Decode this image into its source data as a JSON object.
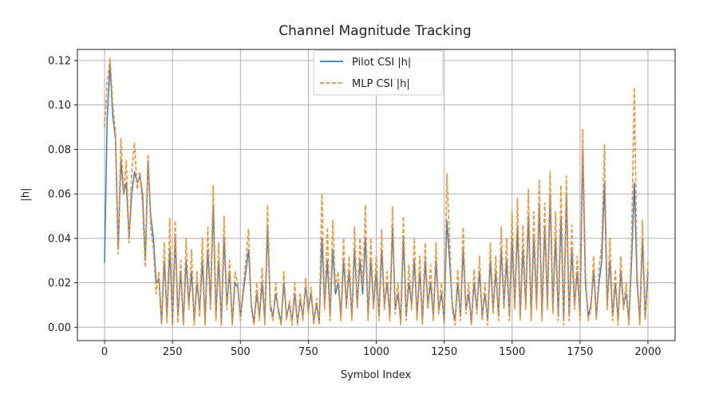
{
  "chart_data": {
    "type": "line",
    "title": "Channel Magnitude Tracking",
    "xlabel": "Symbol Index",
    "ylabel": "|h|",
    "xlim": [
      -100,
      2100
    ],
    "ylim": [
      -0.006,
      0.125
    ],
    "xticks": [
      0,
      250,
      500,
      750,
      1000,
      1250,
      1500,
      1750,
      2000
    ],
    "xtick_labels": [
      "0",
      "250",
      "500",
      "750",
      "1000",
      "1250",
      "1500",
      "1750",
      "2000"
    ],
    "yticks": [
      0,
      0.02,
      0.04,
      0.06,
      0.08,
      0.1,
      0.12
    ],
    "ytick_labels": [
      "0.00",
      "0.02",
      "0.04",
      "0.06",
      "0.08",
      "0.10",
      "0.12"
    ],
    "grid": true,
    "legend_placement": "top-center",
    "x": [
      0,
      10,
      20,
      30,
      40,
      50,
      60,
      70,
      80,
      90,
      100,
      110,
      120,
      130,
      140,
      150,
      160,
      170,
      180,
      190,
      200,
      210,
      220,
      230,
      240,
      250,
      260,
      270,
      280,
      290,
      300,
      310,
      320,
      330,
      340,
      350,
      360,
      370,
      380,
      390,
      400,
      410,
      420,
      430,
      440,
      450,
      460,
      470,
      480,
      490,
      500,
      510,
      520,
      530,
      540,
      550,
      560,
      570,
      580,
      590,
      600,
      610,
      620,
      630,
      640,
      650,
      660,
      670,
      680,
      690,
      700,
      710,
      720,
      730,
      740,
      750,
      760,
      770,
      780,
      790,
      800,
      810,
      820,
      830,
      840,
      850,
      860,
      870,
      880,
      890,
      900,
      910,
      920,
      930,
      940,
      950,
      960,
      970,
      980,
      990,
      1000,
      1010,
      1020,
      1030,
      1040,
      1050,
      1060,
      1070,
      1080,
      1090,
      1100,
      1110,
      1120,
      1130,
      1140,
      1150,
      1160,
      1170,
      1180,
      1190,
      1200,
      1210,
      1220,
      1230,
      1240,
      1250,
      1260,
      1270,
      1280,
      1290,
      1300,
      1310,
      1320,
      1330,
      1340,
      1350,
      1360,
      1370,
      1380,
      1390,
      1400,
      1410,
      1420,
      1430,
      1440,
      1450,
      1460,
      1470,
      1480,
      1490,
      1500,
      1510,
      1520,
      1530,
      1540,
      1550,
      1560,
      1570,
      1580,
      1590,
      1600,
      1610,
      1620,
      1630,
      1640,
      1650,
      1660,
      1670,
      1680,
      1690,
      1700,
      1710,
      1720,
      1730,
      1740,
      1750,
      1760,
      1770,
      1780,
      1790,
      1800,
      1810,
      1820,
      1830,
      1840,
      1850,
      1860,
      1870,
      1880,
      1890,
      1900,
      1910,
      1920,
      1930,
      1940,
      1950,
      1960,
      1970,
      1980,
      1990,
      2000
    ],
    "series": [
      {
        "name": "Pilot CSI |h|",
        "color": "#3a7bbf",
        "style": "solid",
        "values": [
          0.029,
          0.095,
          0.118,
          0.095,
          0.085,
          0.035,
          0.075,
          0.06,
          0.065,
          0.04,
          0.06,
          0.07,
          0.065,
          0.068,
          0.06,
          0.03,
          0.075,
          0.05,
          0.04,
          0.02,
          0.022,
          0.002,
          0.03,
          0.005,
          0.035,
          0.002,
          0.04,
          0.005,
          0.025,
          0.002,
          0.03,
          0.01,
          0.025,
          0.003,
          0.02,
          0.008,
          0.03,
          0.002,
          0.035,
          0.01,
          0.055,
          0.005,
          0.03,
          0.002,
          0.04,
          0.01,
          0.025,
          0.002,
          0.02,
          0.018,
          0.005,
          0.015,
          0.025,
          0.035,
          0.01,
          0.002,
          0.015,
          0.005,
          0.02,
          0.003,
          0.045,
          0.01,
          0.005,
          0.015,
          0.008,
          0.002,
          0.02,
          0.005,
          0.01,
          0.003,
          0.015,
          0.002,
          0.012,
          0.005,
          0.018,
          0.008,
          0.015,
          0.003,
          0.01,
          0.002,
          0.04,
          0.01,
          0.03,
          0.005,
          0.035,
          0.015,
          0.02,
          0.005,
          0.03,
          0.01,
          0.025,
          0.005,
          0.035,
          0.01,
          0.03,
          0.015,
          0.04,
          0.005,
          0.03,
          0.01,
          0.025,
          0.005,
          0.035,
          0.01,
          0.02,
          0.005,
          0.045,
          0.008,
          0.015,
          0.003,
          0.04,
          0.005,
          0.02,
          0.01,
          0.03,
          0.005,
          0.025,
          0.003,
          0.03,
          0.01,
          0.02,
          0.005,
          0.03,
          0.008,
          0.015,
          0.003,
          0.048,
          0.03,
          0.01,
          0.003,
          0.02,
          0.005,
          0.035,
          0.008,
          0.015,
          0.002,
          0.02,
          0.008,
          0.025,
          0.005,
          0.015,
          0.003,
          0.03,
          0.008,
          0.025,
          0.005,
          0.035,
          0.01,
          0.03,
          0.005,
          0.04,
          0.01,
          0.045,
          0.005,
          0.035,
          0.01,
          0.05,
          0.005,
          0.04,
          0.01,
          0.055,
          0.005,
          0.045,
          0.01,
          0.06,
          0.008,
          0.04,
          0.005,
          0.05,
          0.003,
          0.06,
          0.005,
          0.035,
          0.01,
          0.025,
          0.005,
          0.08,
          0.02,
          0.005,
          0.01,
          0.025,
          0.005,
          0.02,
          0.03,
          0.065,
          0.01,
          0.03,
          0.005,
          0.02,
          0.003,
          0.025,
          0.01,
          0.015,
          0.003,
          0.03,
          0.065,
          0.02,
          0.003,
          0.04,
          0.005,
          0.025
        ]
      },
      {
        "name": "MLP CSI |h|",
        "color": "#f28e2b",
        "style": "dashed",
        "values": [
          0.09,
          0.11,
          0.121,
          0.1,
          0.088,
          0.033,
          0.085,
          0.06,
          0.075,
          0.038,
          0.07,
          0.083,
          0.062,
          0.07,
          0.055,
          0.027,
          0.078,
          0.045,
          0.035,
          0.015,
          0.025,
          0.001,
          0.038,
          0.002,
          0.049,
          0.001,
          0.048,
          0.002,
          0.03,
          0.001,
          0.04,
          0.008,
          0.035,
          0.001,
          0.025,
          0.005,
          0.04,
          0.001,
          0.045,
          0.008,
          0.064,
          0.003,
          0.038,
          0.001,
          0.05,
          0.008,
          0.03,
          0.001,
          0.025,
          0.02,
          0.003,
          0.018,
          0.03,
          0.044,
          0.008,
          0.001,
          0.02,
          0.003,
          0.027,
          0.001,
          0.055,
          0.008,
          0.003,
          0.02,
          0.006,
          0.001,
          0.025,
          0.003,
          0.012,
          0.001,
          0.02,
          0.001,
          0.015,
          0.003,
          0.022,
          0.006,
          0.018,
          0.001,
          0.013,
          0.001,
          0.06,
          0.008,
          0.045,
          0.003,
          0.048,
          0.018,
          0.025,
          0.003,
          0.04,
          0.008,
          0.032,
          0.003,
          0.045,
          0.008,
          0.04,
          0.018,
          0.055,
          0.003,
          0.04,
          0.008,
          0.032,
          0.003,
          0.044,
          0.008,
          0.025,
          0.003,
          0.054,
          0.006,
          0.02,
          0.001,
          0.05,
          0.003,
          0.028,
          0.008,
          0.04,
          0.003,
          0.032,
          0.001,
          0.038,
          0.008,
          0.028,
          0.003,
          0.038,
          0.006,
          0.02,
          0.001,
          0.069,
          0.04,
          0.008,
          0.001,
          0.026,
          0.003,
          0.045,
          0.006,
          0.02,
          0.001,
          0.026,
          0.006,
          0.032,
          0.003,
          0.02,
          0.001,
          0.038,
          0.006,
          0.032,
          0.003,
          0.045,
          0.008,
          0.04,
          0.003,
          0.052,
          0.008,
          0.058,
          0.003,
          0.046,
          0.008,
          0.062,
          0.003,
          0.052,
          0.008,
          0.066,
          0.003,
          0.056,
          0.008,
          0.07,
          0.006,
          0.052,
          0.003,
          0.064,
          0.001,
          0.068,
          0.003,
          0.046,
          0.008,
          0.032,
          0.003,
          0.089,
          0.025,
          0.003,
          0.008,
          0.032,
          0.003,
          0.026,
          0.038,
          0.082,
          0.008,
          0.04,
          0.003,
          0.026,
          0.001,
          0.032,
          0.008,
          0.02,
          0.001,
          0.04,
          0.108,
          0.025,
          0.001,
          0.048,
          0.003,
          0.03
        ]
      }
    ]
  }
}
